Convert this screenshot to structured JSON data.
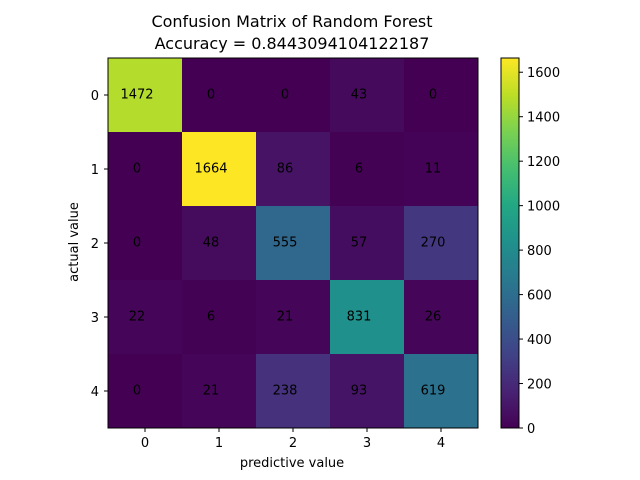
{
  "chart_data": {
    "type": "heatmap",
    "title": "Confusion Matrix of Random Forest",
    "subtitle": "Accuracy = 0.8443094104122187",
    "xlabel": "predictive value",
    "ylabel": "actual value",
    "x_categories": [
      "0",
      "1",
      "2",
      "3",
      "4"
    ],
    "y_categories": [
      "0",
      "1",
      "2",
      "3",
      "4"
    ],
    "values": [
      [
        1472,
        0,
        0,
        43,
        0
      ],
      [
        0,
        1664,
        86,
        6,
        11
      ],
      [
        0,
        48,
        555,
        57,
        270
      ],
      [
        22,
        6,
        21,
        831,
        26
      ],
      [
        0,
        21,
        238,
        93,
        619
      ]
    ],
    "colormap": "viridis",
    "colorbar": {
      "range": [
        0,
        1664
      ],
      "ticks": [
        0,
        200,
        400,
        600,
        800,
        1000,
        1200,
        1400,
        1600
      ]
    }
  }
}
